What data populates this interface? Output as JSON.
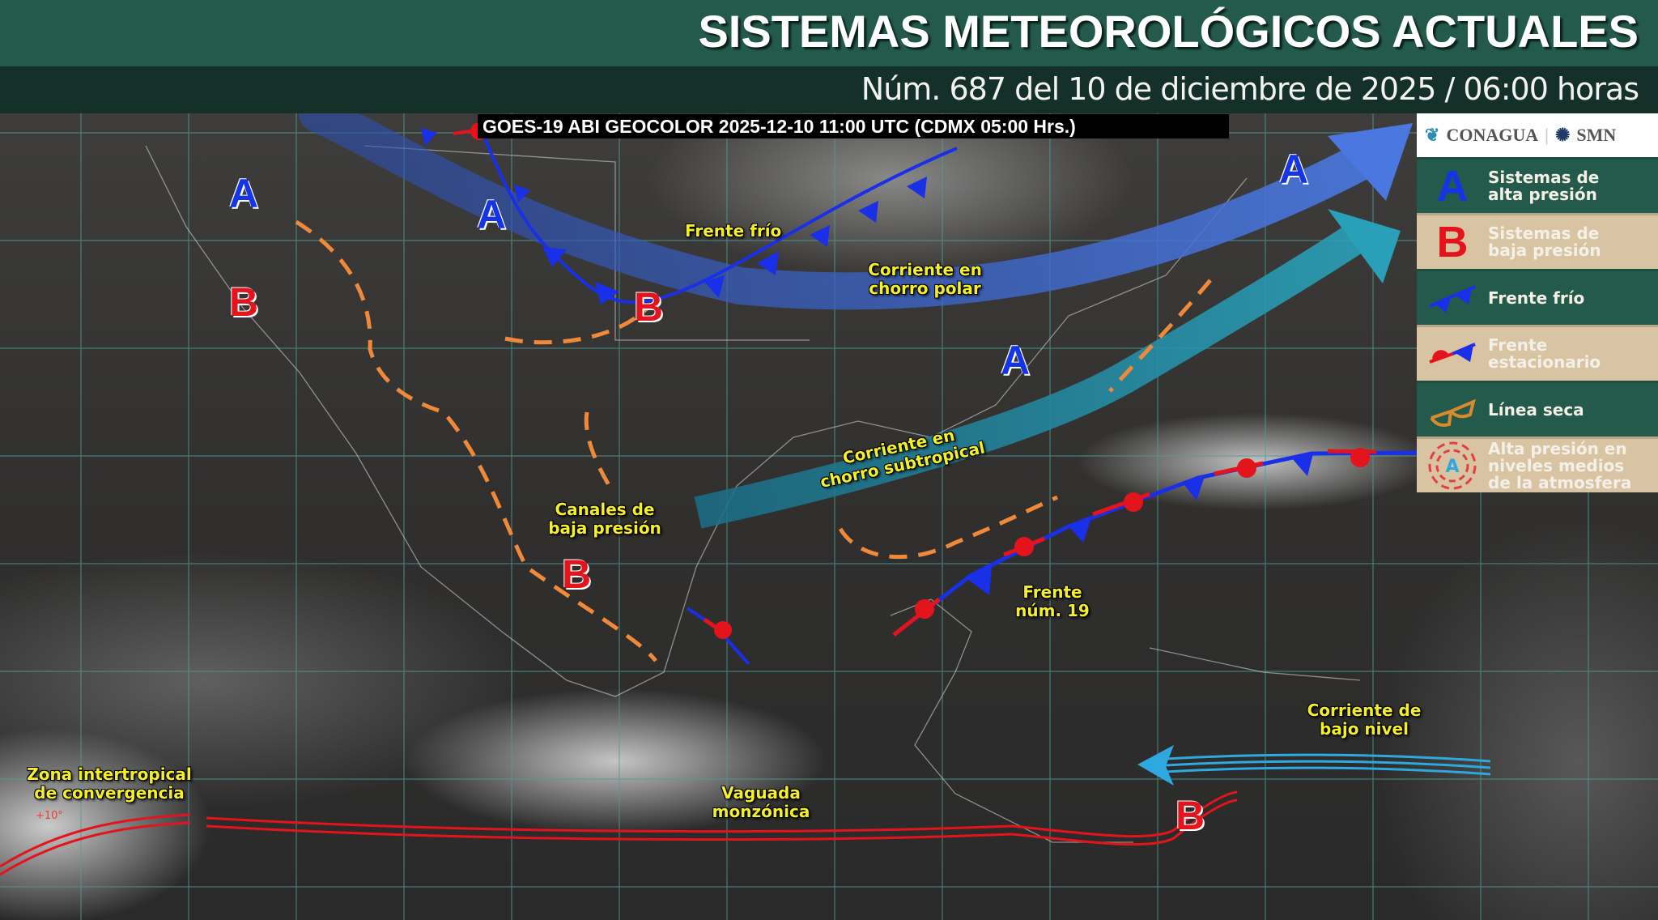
{
  "header": {
    "title": "SISTEMAS METEOROLÓGICOS ACTUALES",
    "subtitle": "Núm. 687 del 10 de diciembre de 2025 / 06:00 horas"
  },
  "satellite_banner": "GOES-19 ABI GEOCOLOR 2025-12-10 11:00 UTC (CDMX  05:00 Hrs.)",
  "legend": {
    "logos": [
      "CONAGUA",
      "SMN"
    ],
    "items": [
      {
        "icon": "high-pressure-A",
        "label": "Sistemas de alta presión",
        "color": "#1434e6"
      },
      {
        "icon": "low-pressure-B",
        "label": "Sistemas de baja presión",
        "color": "#e3141c"
      },
      {
        "icon": "cold-front",
        "label": "Frente frío"
      },
      {
        "icon": "stationary-front",
        "label": "Frente estacionario"
      },
      {
        "icon": "dry-line",
        "label": "Línea seca",
        "color": "#d98a2b"
      },
      {
        "icon": "mid-level-high",
        "label": "Alta presión en niveles medios de la atmosfera"
      }
    ]
  },
  "map": {
    "high_symbol": "A",
    "low_symbol": "B",
    "labels": {
      "cold_front": "Frente frío",
      "polar_jet": "Corriente en chorro polar",
      "subtropical_jet": "Corriente en chorro subtropical",
      "troughs": "Canales de baja presión",
      "front19": "Frente núm. 19",
      "low_level_jet": "Corriente de bajo nivel",
      "itcz": "Zona intertropical de convergencia",
      "monsoon": "Vaguada monzónica"
    },
    "lat_label": "+10°",
    "colors": {
      "cold_front": "#1a2fe8",
      "warm_semicircle": "#e3141c",
      "dry_line": "#f08a3a",
      "polar_jet": "#3b63c9",
      "subtropical_jet": "#1e7f98",
      "low_level_jet": "#2fa8e0",
      "itcz": "#e3141c",
      "grid": "#4f9e98"
    }
  }
}
